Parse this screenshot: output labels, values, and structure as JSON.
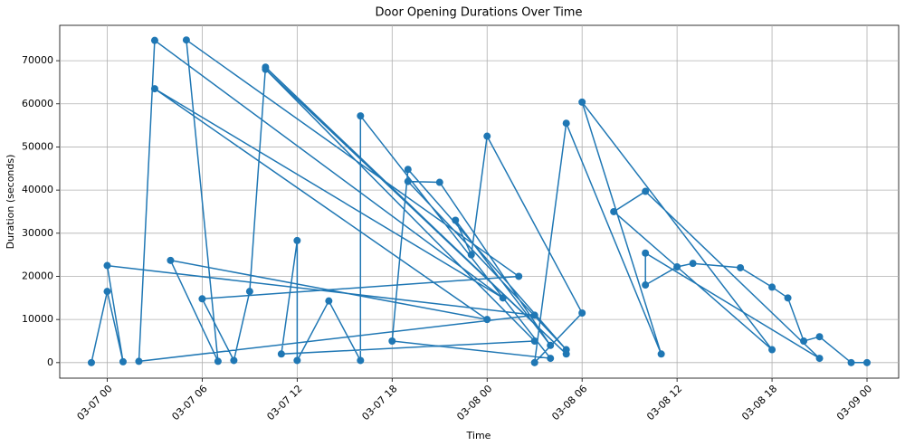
{
  "chart_data": {
    "type": "line",
    "title": "Door Opening Durations Over Time",
    "x_label": "Time",
    "y_label": "Duration (seconds)",
    "x": [
      "03-06 23",
      "03-07 00",
      "03-07 01",
      "03-07 00",
      "03-08 03",
      "03-07 02",
      "03-07 03",
      "03-08 01",
      "03-07 03",
      "03-08 00",
      "03-07 04",
      "03-07 07",
      "03-07 05",
      "03-08 02",
      "03-07 06",
      "03-07 08",
      "03-07 09",
      "03-07 10",
      "03-08 05",
      "03-07 10",
      "03-08 03",
      "03-07 11",
      "03-07 12",
      "03-07 12",
      "03-07 14",
      "03-07 16",
      "03-07 16",
      "03-08 04",
      "03-07 18",
      "03-07 19",
      "03-08 05",
      "03-07 19",
      "03-07 21",
      "03-08 04",
      "03-07 22",
      "03-07 23",
      "03-08 00",
      "03-08 06",
      "03-08 03",
      "03-08 05",
      "03-08 11",
      "03-08 06",
      "03-08 18",
      "03-08 08",
      "03-08 10",
      "03-08 21",
      "03-08 10",
      "03-08 10",
      "03-08 12",
      "03-08 13",
      "03-08 16",
      "03-08 18",
      "03-08 19",
      "03-08 20",
      "03-08 21",
      "03-08 23",
      "03-09 00"
    ],
    "series": [
      {
        "name": "Duration",
        "color": "#1f77b4",
        "values": [
          0,
          16500,
          200,
          22500,
          11000,
          300,
          74700,
          15000,
          63500,
          10000,
          23700,
          300,
          74800,
          20000,
          14800,
          500,
          16500,
          68500,
          2000,
          68000,
          5000,
          2000,
          28300,
          500,
          14300,
          500,
          57200,
          1000,
          5000,
          44800,
          3000,
          42000,
          41800,
          4000,
          33000,
          25000,
          52500,
          11500,
          0,
          55500,
          2000,
          60400,
          3000,
          35000,
          39700,
          1000,
          25400,
          18000,
          22200,
          23000,
          22000,
          17500,
          15000,
          5000,
          6000,
          0,
          0
        ]
      }
    ],
    "xlim": [
      "03-06 21",
      "03-09 02"
    ],
    "xticks": [
      "03-07 00",
      "03-07 06",
      "03-07 12",
      "03-07 18",
      "03-08 00",
      "03-08 06",
      "03-08 12",
      "03-08 18",
      "03-09 00"
    ],
    "ylim": [
      -3600,
      78200
    ],
    "yticks": [
      0,
      10000,
      20000,
      30000,
      40000,
      50000,
      60000,
      70000
    ],
    "grid": true
  }
}
